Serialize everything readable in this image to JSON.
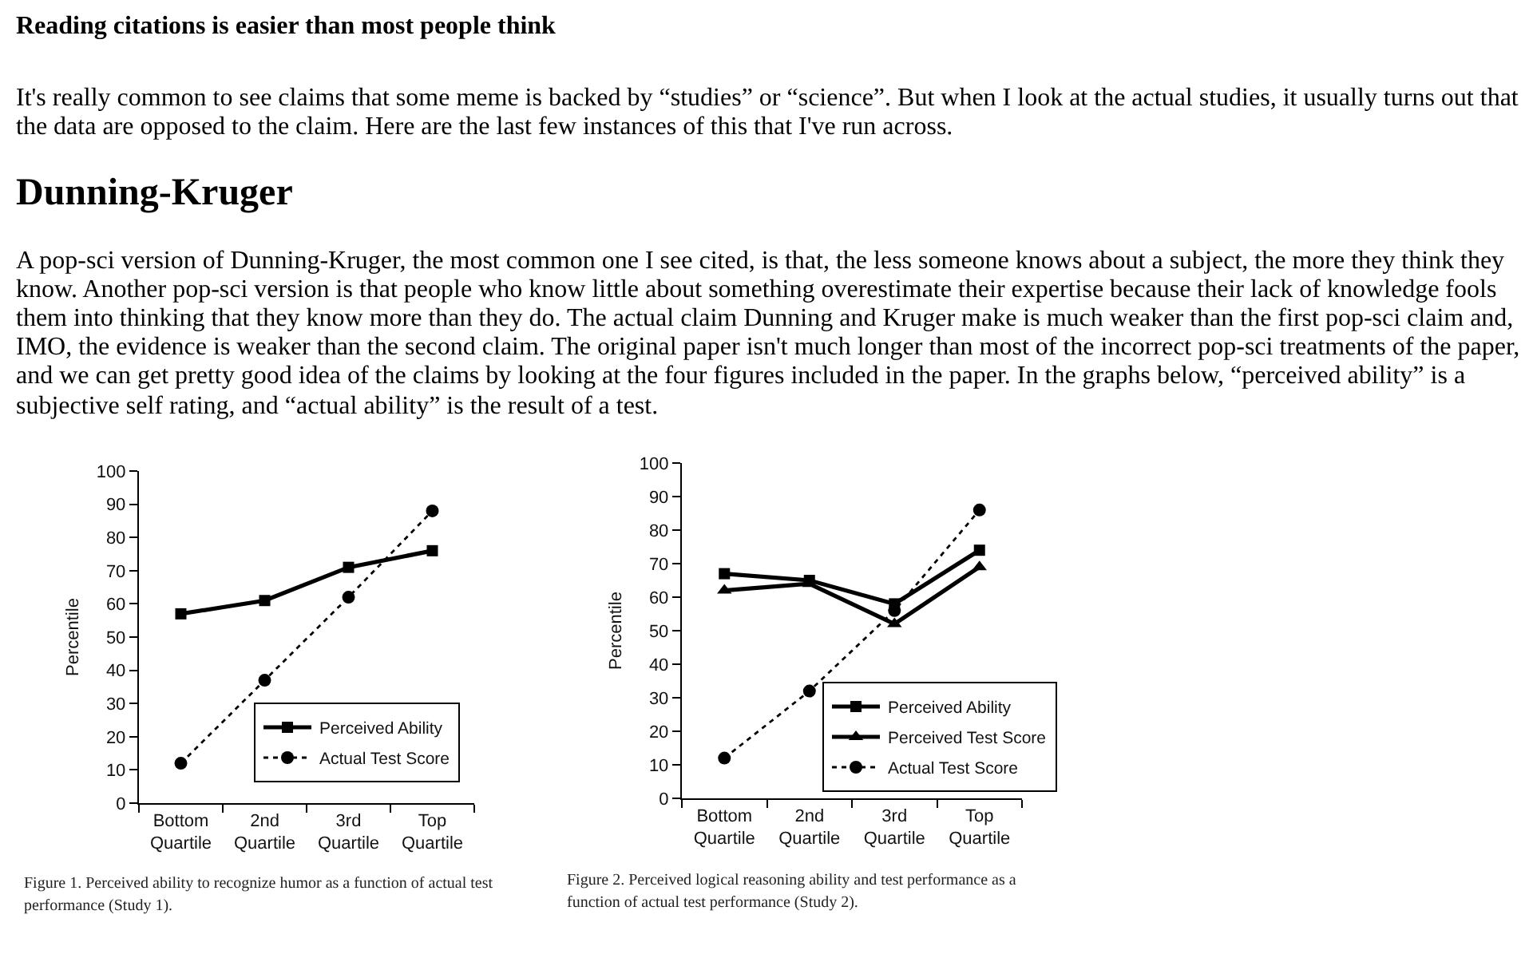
{
  "chart_data": [
    {
      "type": "line",
      "ylabel": "Percentile",
      "categories": [
        "Bottom Quartile",
        "2nd Quartile",
        "3rd Quartile",
        "Top Quartile"
      ],
      "ylim": [
        0,
        100
      ],
      "yticks": [
        0,
        10,
        20,
        30,
        40,
        50,
        60,
        70,
        80,
        90,
        100
      ],
      "legend": "bottom right",
      "series": [
        {
          "name": "Perceived Ability",
          "color": "#000000",
          "marker": "square",
          "line_style": "solid",
          "values": [
            57,
            61,
            71,
            76
          ]
        },
        {
          "name": "Actual Test Score",
          "color": "#000000",
          "marker": "circle",
          "line_style": "dotted",
          "values": [
            12,
            37,
            62,
            88
          ]
        }
      ],
      "annotations": [
        "Reading citations is easier than most people think",
        "It's really common to see claims that some meme is backed by “studies” or “science”. But when I look at the actual studies, it usually turns out that\nthe data are opposed to the claim. Here are the last few instances of this that I've run across.",
        "Dunning-Kruger",
        "A pop-sci version of Dunning-Kruger, the most common one I see cited, is that, the less someone knows about a subject, the more they think they\nknow. Another pop-sci version is that people who know little about something overestimate their expertise because their lack of knowledge fools\nthem into thinking that they know more than they do. The actual claim Dunning and Kruger make is much weaker than the first pop-sci claim and,\nIMO, the evidence is weaker than the second claim. The original paper isn't much longer than most of the incorrect pop-sci treatments of the paper,\nand we can get pretty good idea of the claims by looking at the four figures included in the paper. In the graphs below, “perceived ability” is a\nsubjective self rating, and “actual ability” is the result of a test.",
        "Figure 1. Perceived ability to recognize humor as a function of actual test\nperformance (Study 1)."
      ]
    },
    {
      "type": "line",
      "ylabel": "Percentile",
      "categories": [
        "Bottom Quartile",
        "2nd Quartile",
        "3rd Quartile",
        "Top Quartile"
      ],
      "ylim": [
        0,
        100
      ],
      "yticks": [
        0,
        10,
        20,
        30,
        40,
        50,
        60,
        70,
        80,
        90,
        100
      ],
      "legend": "bottom right",
      "series": [
        {
          "name": "Perceived Ability",
          "color": "#000000",
          "marker": "square",
          "line_style": "solid",
          "values": [
            67,
            65,
            58,
            74
          ]
        },
        {
          "name": "Perceived Test Score",
          "color": "#000000",
          "marker": "triangle",
          "line_style": "solid",
          "values": [
            62,
            64,
            52,
            69
          ]
        },
        {
          "name": "Actual Test Score",
          "color": "#000000",
          "marker": "circle",
          "line_style": "dotted",
          "values": [
            12,
            32,
            56,
            86
          ]
        }
      ],
      "annotations": [
        "Figure 2. Perceived logical reasoning ability and test performance as a\nfunction of actual test performance (Study 2)."
      ]
    }
  ]
}
